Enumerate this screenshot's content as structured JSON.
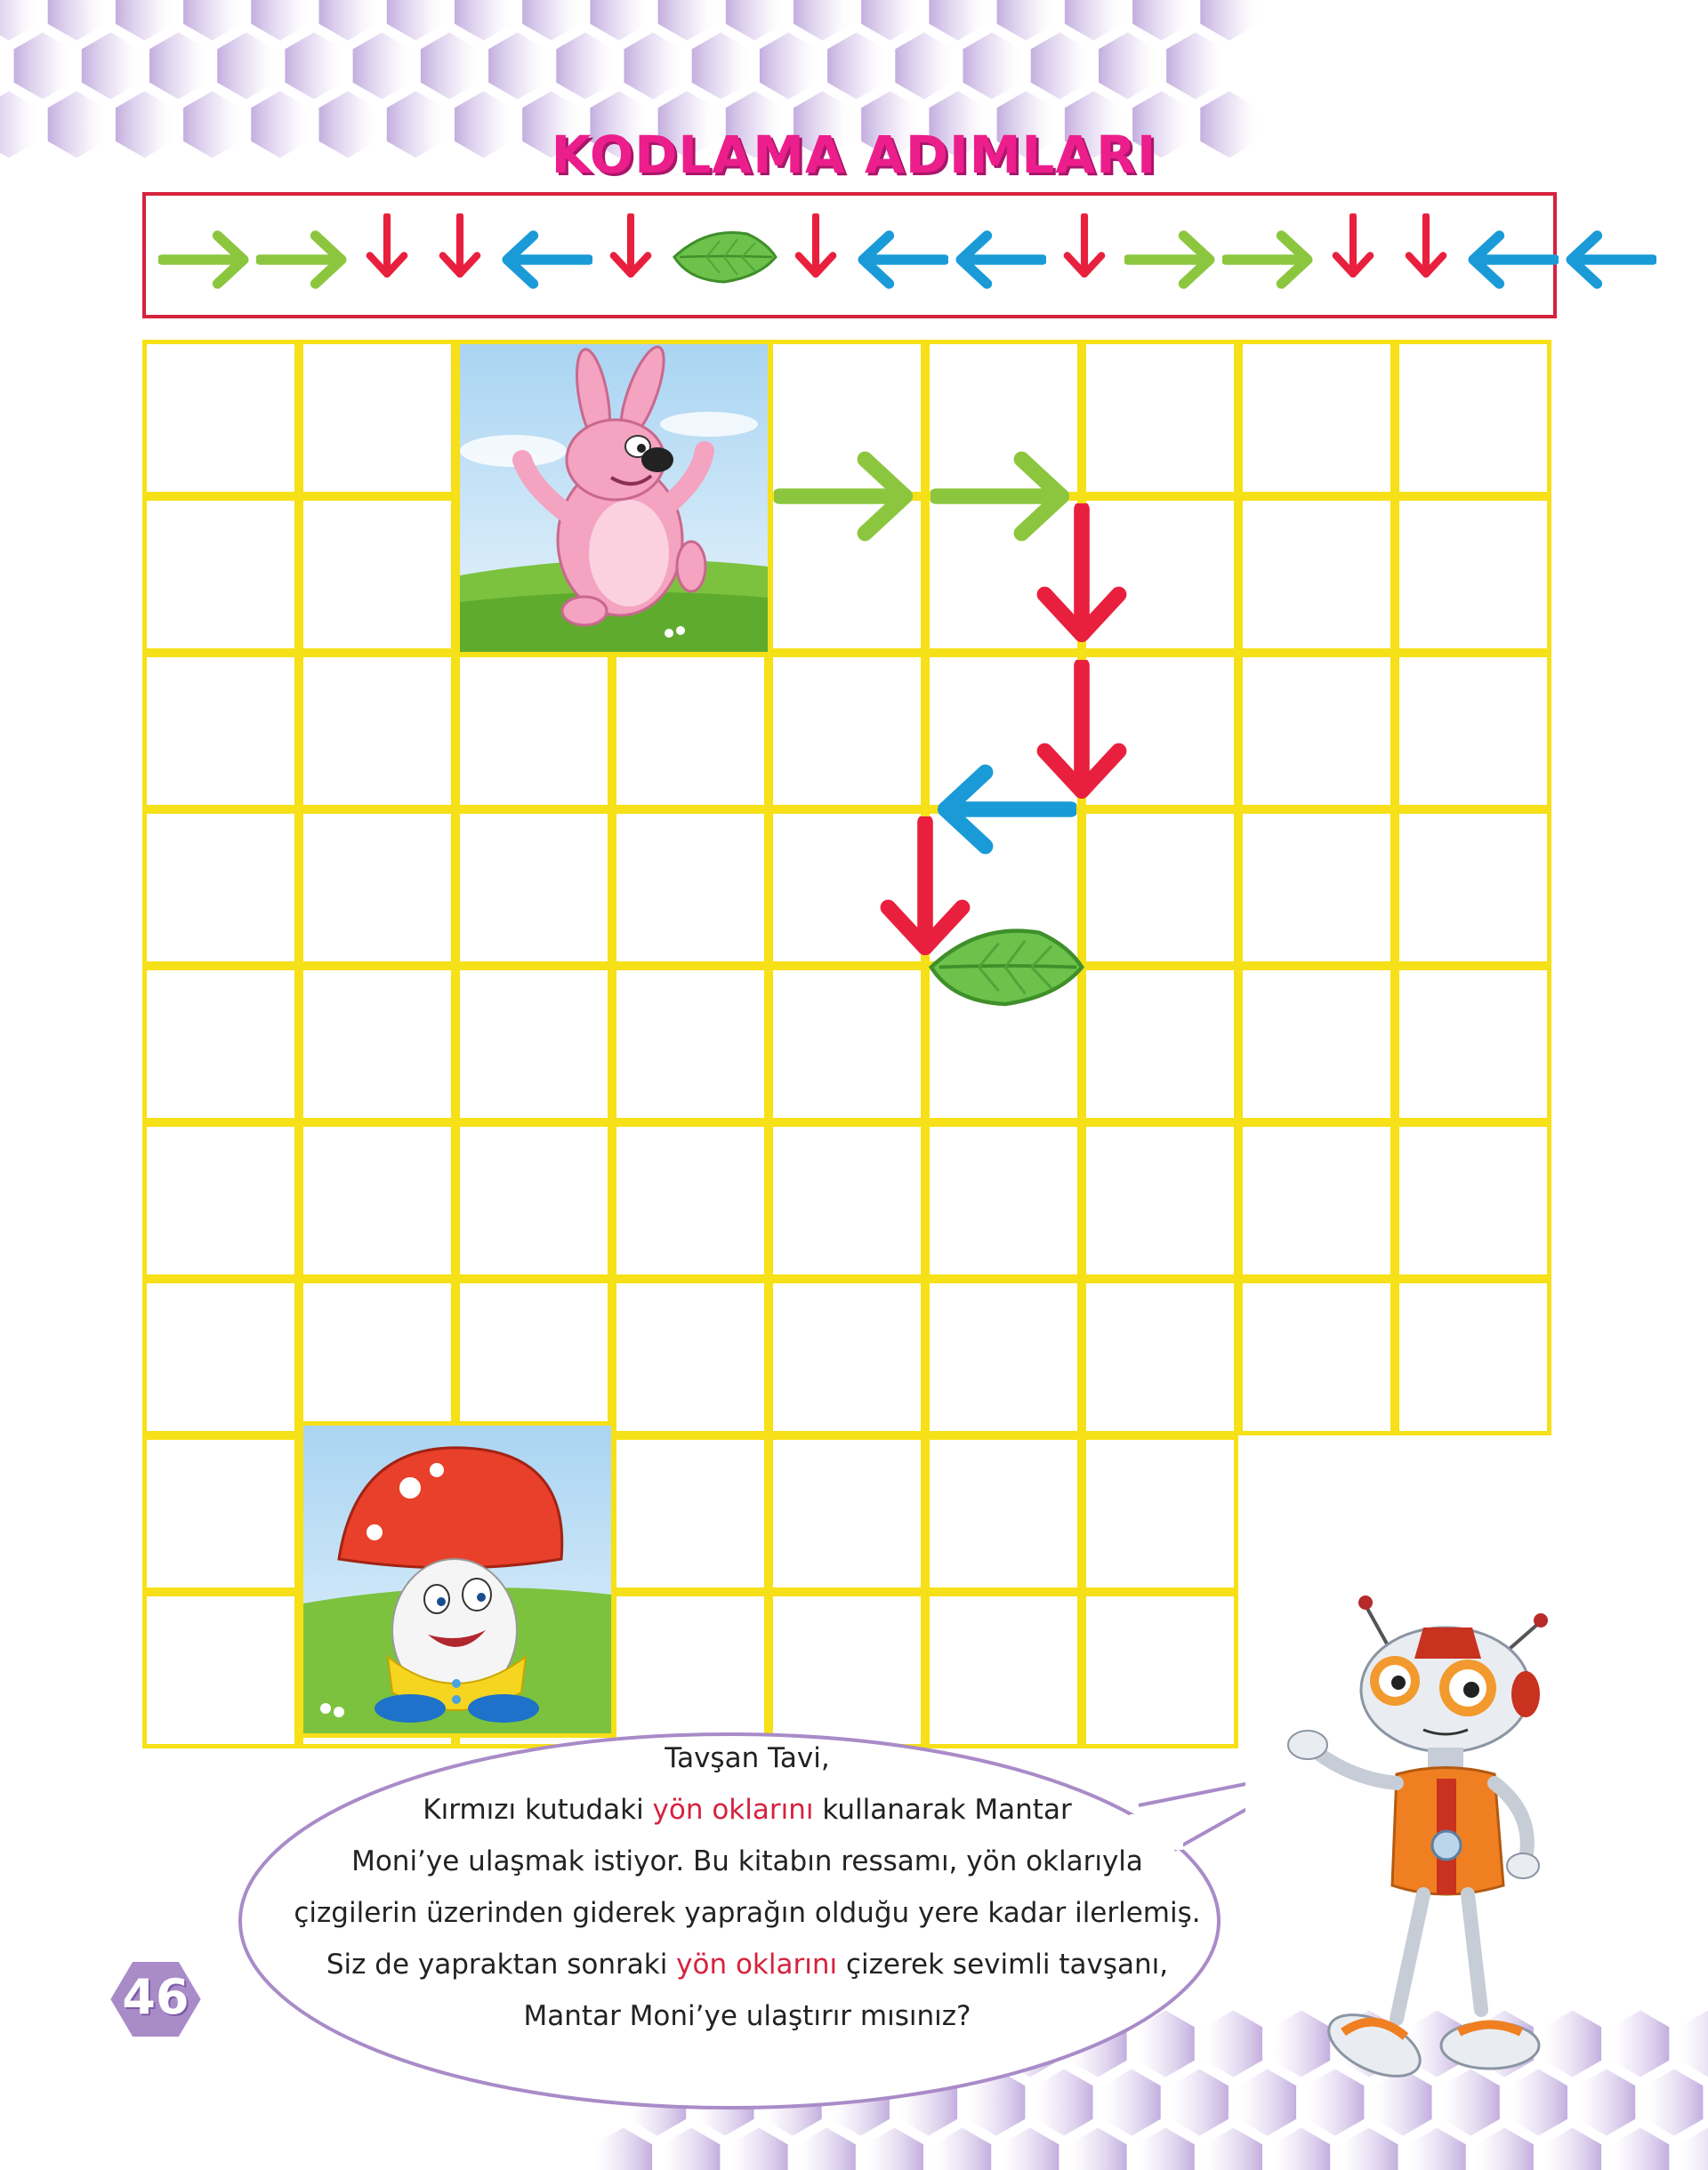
{
  "page": {
    "title": "KODLAMA ADIMLARI",
    "page_number": "46"
  },
  "steps": [
    "right",
    "right",
    "down",
    "down",
    "left",
    "down",
    "leaf",
    "down",
    "left",
    "left",
    "down",
    "right",
    "right",
    "down",
    "down",
    "left",
    "left"
  ],
  "colors": {
    "right": "#8cc63f",
    "down": "#e8203d",
    "left": "#1a9bd7",
    "grid": "#f6e017",
    "title": "#ec1e8c",
    "box_border": "#d6223d",
    "highlight": "#d6223d",
    "hex": "#c9b6e0"
  },
  "grid": {
    "rows": 9,
    "cols": 9,
    "characters": [
      "Tavşan Tavi",
      "Mantar Moni"
    ]
  },
  "drawn_path": [
    "right",
    "right",
    "down",
    "down",
    "left",
    "down",
    "leaf"
  ],
  "bubble": {
    "line1": "Tavşan Tavi,",
    "line2_pre": "Kırmızı kutudaki ",
    "line2_hl": "yön oklarını",
    "line2_post": " kullanarak Mantar",
    "line3": "Moni’ye ulaşmak istiyor. Bu kitabın ressamı, yön oklarıyla",
    "line4": "çizgilerin üzerinden giderek yaprağın olduğu yere kadar ilerlemiş.",
    "line5_pre": "Siz de yapraktan sonraki ",
    "line5_hl": "yön oklarını",
    "line5_post": " çizerek sevimli tavşanı,",
    "line6": "Mantar Moni’ye ulaştırır mısınız?"
  }
}
